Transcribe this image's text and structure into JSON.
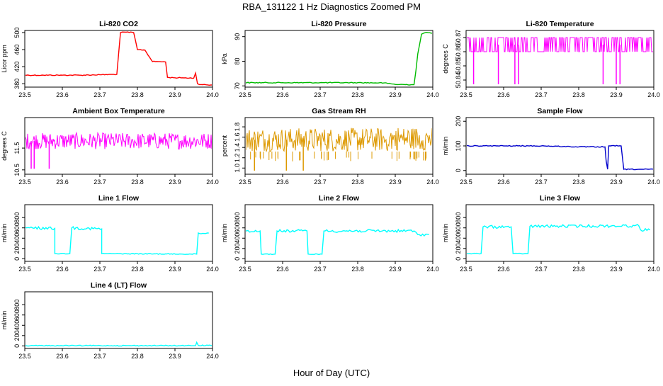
{
  "page": {
    "title": "RBA_131122  1 Hz Diagnostics Zoomed PM",
    "xlabel": "Hour of Day (UTC)"
  },
  "chart_data": [
    {
      "id": "co2",
      "type": "line",
      "title": "Li-820 CO2",
      "ylabel": "Licor ppm",
      "color": "#ff0000",
      "xlim": [
        23.5,
        24.0
      ],
      "ylim": [
        372,
        505
      ],
      "xticks": [
        "23.5",
        "23.6",
        "23.7",
        "23.8",
        "23.9",
        "24.0"
      ],
      "yticks": [
        "380",
        "420",
        "460",
        "500"
      ],
      "x": [
        23.5,
        23.55,
        23.6,
        23.65,
        23.7,
        23.745,
        23.755,
        23.77,
        23.79,
        23.8,
        23.82,
        23.84,
        23.86,
        23.875,
        23.88,
        23.9,
        23.92,
        23.95,
        23.955,
        23.96,
        23.97,
        24.0
      ],
      "y": [
        400,
        400,
        400,
        400,
        401,
        402,
        500,
        501,
        500,
        460,
        459,
        432,
        432,
        431,
        395,
        394,
        394,
        393,
        405,
        380,
        378,
        377
      ]
    },
    {
      "id": "pressure",
      "type": "line",
      "title": "Li-820 Pressure",
      "ylabel": "kPa",
      "color": "#00bb00",
      "xlim": [
        23.5,
        24.0
      ],
      "ylim": [
        69.5,
        92.5
      ],
      "xticks": [
        "23.5",
        "23.6",
        "23.7",
        "23.8",
        "23.9",
        "24.0"
      ],
      "yticks": [
        "70",
        "80",
        "90"
      ],
      "x": [
        23.5,
        23.6,
        23.7,
        23.8,
        23.87,
        23.88,
        23.9,
        23.95,
        23.955,
        23.96,
        23.97,
        23.98,
        24.0
      ],
      "y": [
        71.3,
        71.3,
        71.3,
        71.3,
        71.2,
        71.0,
        70.6,
        70.5,
        76,
        83,
        91,
        91.6,
        91.5
      ]
    },
    {
      "id": "temp",
      "type": "line",
      "title": "Li-820 Temperature",
      "ylabel": "degrees C",
      "color": "#ff00ff",
      "xlim": [
        23.5,
        24.0
      ],
      "ylim": [
        50.835,
        50.875
      ],
      "xticks": [
        "23.5",
        "23.6",
        "23.7",
        "23.8",
        "23.9",
        "24.0"
      ],
      "yticks": [
        "50.84",
        "50.85",
        "50.86",
        "50.87"
      ],
      "x_range": [
        23.5,
        24.0
      ],
      "levels": [
        50.86,
        50.87
      ],
      "dips": [
        23.52,
        23.586,
        23.63,
        23.64,
        23.865,
        23.9,
        23.91
      ],
      "dip_level": 50.837
    },
    {
      "id": "ambient",
      "type": "line",
      "title": "Ambient Box Temperature",
      "ylabel": "degrees C",
      "color": "#ff00ff",
      "xlim": [
        23.5,
        24.0
      ],
      "ylim": [
        10.3,
        12.9
      ],
      "xticks": [
        "23.5",
        "23.6",
        "23.7",
        "23.8",
        "23.9",
        "24.0"
      ],
      "yticks": [
        "10.5",
        "11.5"
      ],
      "x_range": [
        23.5,
        24.0
      ],
      "levels": [
        11.45,
        12.2
      ],
      "dips": [
        23.517,
        23.525,
        23.565
      ],
      "dip_level": 10.55
    },
    {
      "id": "rh",
      "type": "line",
      "title": "Gas Stream RH",
      "ylabel": "percent",
      "color": "#dd9900",
      "xlim": [
        23.5,
        24.0
      ],
      "ylim": [
        0.88,
        1.98
      ],
      "xticks": [
        "23.5",
        "23.6",
        "23.7",
        "23.8",
        "23.9",
        "24.0"
      ],
      "yticks": [
        "1.0",
        "1.2",
        "1.4",
        "1.6",
        "1.8"
      ],
      "x_range": [
        23.5,
        24.0
      ],
      "levels": [
        1.32,
        1.78
      ],
      "dips": [
        23.525,
        23.61,
        23.655
      ],
      "dip_level": 0.95
    },
    {
      "id": "sample",
      "type": "line",
      "title": "Sample Flow",
      "ylabel": "ml/min",
      "color": "#0000cc",
      "xlim": [
        23.5,
        24.0
      ],
      "ylim": [
        -15,
        215
      ],
      "xticks": [
        "23.5",
        "23.6",
        "23.7",
        "23.8",
        "23.9",
        "24.0"
      ],
      "yticks": [
        "0",
        "100",
        "200"
      ],
      "x": [
        23.5,
        23.6,
        23.7,
        23.8,
        23.87,
        23.873,
        23.877,
        23.88,
        23.885,
        23.913,
        23.92,
        24.0
      ],
      "y": [
        100,
        100,
        100,
        96,
        96,
        40,
        5,
        100,
        100,
        100,
        5,
        5
      ]
    },
    {
      "id": "line1",
      "type": "line",
      "title": "Line 1 Flow",
      "ylabel": "ml/min",
      "color": "#00ffff",
      "xlim": [
        23.5,
        24.0
      ],
      "ylim": [
        -50,
        1050
      ],
      "xticks": [
        "23.5",
        "23.6",
        "23.7",
        "23.8",
        "23.9",
        "24.0"
      ],
      "yticks": [
        "0",
        "200",
        "400",
        "600",
        "800"
      ],
      "x": [
        23.5,
        23.5,
        23.505,
        23.58,
        23.58,
        23.62,
        23.625,
        23.705,
        23.705,
        23.958,
        23.962,
        23.99
      ],
      "y": [
        120,
        610,
        600,
        590,
        100,
        100,
        600,
        580,
        100,
        90,
        500,
        500
      ]
    },
    {
      "id": "line2",
      "type": "line",
      "title": "Line 2 Flow",
      "ylabel": "ml/min",
      "color": "#00ffff",
      "xlim": [
        23.5,
        24.0
      ],
      "ylim": [
        -50,
        1050
      ],
      "xticks": [
        "23.5",
        "23.6",
        "23.7",
        "23.8",
        "23.9",
        "24.0"
      ],
      "yticks": [
        "0",
        "200",
        "400",
        "600",
        "800"
      ],
      "x": [
        23.5,
        23.54,
        23.543,
        23.58,
        23.585,
        23.665,
        23.668,
        23.705,
        23.71,
        23.95,
        23.96,
        23.99
      ],
      "y": [
        540,
        540,
        90,
        90,
        540,
        540,
        90,
        90,
        540,
        540,
        470,
        470
      ]
    },
    {
      "id": "line3",
      "type": "line",
      "title": "Line 3 Flow",
      "ylabel": "ml/min",
      "color": "#00ffff",
      "xlim": [
        23.5,
        24.0
      ],
      "ylim": [
        -50,
        1050
      ],
      "xticks": [
        "23.5",
        "23.6",
        "23.7",
        "23.8",
        "23.9",
        "24.0"
      ],
      "yticks": [
        "0",
        "200",
        "400",
        "600",
        "800"
      ],
      "x": [
        23.5,
        23.5,
        23.502,
        23.54,
        23.545,
        23.62,
        23.625,
        23.665,
        23.67,
        23.96,
        23.965,
        23.99
      ],
      "y": [
        590,
        100,
        100,
        100,
        620,
        620,
        100,
        100,
        630,
        640,
        560,
        560
      ]
    },
    {
      "id": "line4",
      "type": "line",
      "title": "Line 4 (LT) Flow",
      "ylabel": "ml/min",
      "color": "#00ffff",
      "xlim": [
        23.5,
        24.0
      ],
      "ylim": [
        -50,
        1050
      ],
      "xticks": [
        "23.5",
        "23.6",
        "23.7",
        "23.8",
        "23.9",
        "24.0"
      ],
      "yticks": [
        "0",
        "200",
        "400",
        "600",
        "800"
      ],
      "x": [
        23.5,
        23.955,
        23.958,
        23.962,
        24.0
      ],
      "y": [
        5,
        5,
        70,
        10,
        8
      ]
    }
  ]
}
